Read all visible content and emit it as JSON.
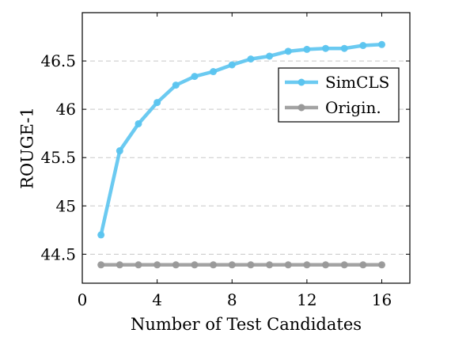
{
  "chart_data": {
    "type": "line",
    "title": "",
    "xlabel": "Number of Test Candidates",
    "ylabel": "ROUGE-1",
    "xlim": [
      0,
      17.5
    ],
    "ylim": [
      44.2,
      47.0
    ],
    "xticks": [
      0,
      4,
      8,
      12,
      16
    ],
    "xtick_labels": [
      "0",
      "4",
      "8",
      "12",
      "16"
    ],
    "yticks": [
      44.5,
      45,
      45.5,
      46,
      46.5
    ],
    "ytick_labels": [
      "44.5",
      "45",
      "45.5",
      "46",
      "46.5"
    ],
    "grid": "horizontal dashed",
    "legend_position": "right",
    "series": [
      {
        "name": "SimCLS",
        "color": "#5bc4ef",
        "x": [
          1,
          2,
          3,
          4,
          5,
          6,
          7,
          8,
          9,
          10,
          11,
          12,
          13,
          14,
          15,
          16
        ],
        "y": [
          44.7,
          45.57,
          45.85,
          46.07,
          46.25,
          46.34,
          46.39,
          46.46,
          46.52,
          46.55,
          46.6,
          46.62,
          46.63,
          46.63,
          46.66,
          46.67
        ]
      },
      {
        "name": "Origin.",
        "color": "#999999",
        "x": [
          1,
          2,
          3,
          4,
          5,
          6,
          7,
          8,
          9,
          10,
          11,
          12,
          13,
          14,
          15,
          16
        ],
        "y": [
          44.39,
          44.39,
          44.39,
          44.39,
          44.39,
          44.39,
          44.39,
          44.39,
          44.39,
          44.39,
          44.39,
          44.39,
          44.39,
          44.39,
          44.39,
          44.39
        ]
      }
    ]
  }
}
